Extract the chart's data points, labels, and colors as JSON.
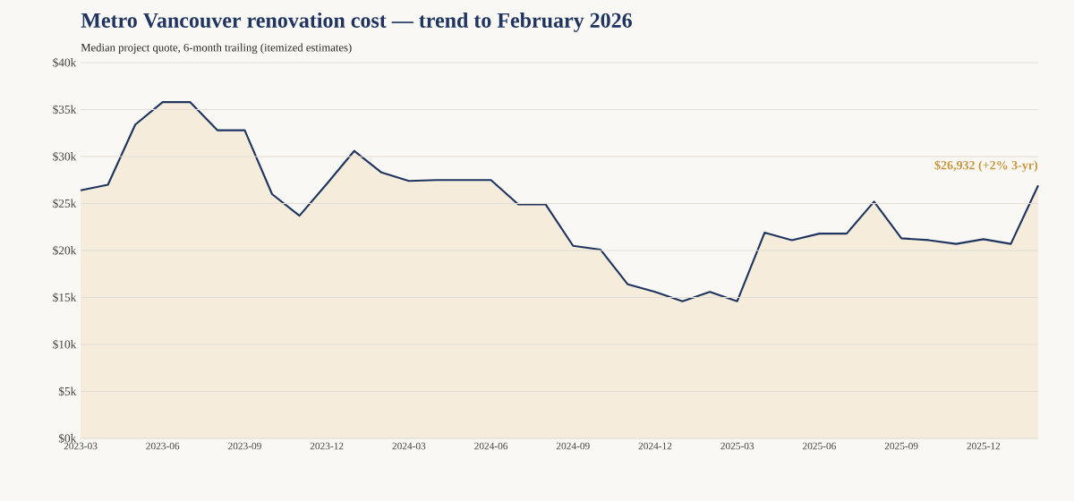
{
  "chart_data": {
    "type": "area",
    "title": "Metro Vancouver renovation cost — trend to February 2026",
    "subtitle": "Median project quote, 6-month trailing (itemized estimates)",
    "x": [
      "2023-03",
      "2023-04",
      "2023-05",
      "2023-06",
      "2023-07",
      "2023-08",
      "2023-09",
      "2023-10",
      "2023-11",
      "2023-12",
      "2024-01",
      "2024-02",
      "2024-03",
      "2024-04",
      "2024-05",
      "2024-06",
      "2024-07",
      "2024-08",
      "2024-09",
      "2024-10",
      "2024-11",
      "2024-12",
      "2025-01",
      "2025-02",
      "2025-03",
      "2025-04",
      "2025-05",
      "2025-06",
      "2025-07",
      "2025-08",
      "2025-09",
      "2025-10",
      "2025-11",
      "2025-12",
      "2026-01",
      "2026-02"
    ],
    "series": [
      {
        "color": "#1f3560",
        "values": [
          26400,
          27000,
          33400,
          35800,
          35800,
          32800,
          32800,
          26000,
          23700,
          27100,
          30600,
          28300,
          27400,
          27500,
          27500,
          27500,
          24900,
          24900,
          20500,
          20100,
          16400,
          15600,
          14600,
          15600,
          14600,
          21900,
          21100,
          21800,
          21800,
          25200,
          21300,
          21100,
          20700,
          21200,
          20700,
          26932
        ]
      }
    ],
    "xlim": [
      "2023-03",
      "2026-02"
    ],
    "xticks": [
      {
        "value": "2023-03",
        "label": "2023-03"
      },
      {
        "value": "2023-06",
        "label": "2023-06"
      },
      {
        "value": "2023-09",
        "label": "2023-09"
      },
      {
        "value": "2023-12",
        "label": "2023-12"
      },
      {
        "value": "2024-03",
        "label": "2024-03"
      },
      {
        "value": "2024-06",
        "label": "2024-06"
      },
      {
        "value": "2024-09",
        "label": "2024-09"
      },
      {
        "value": "2024-12",
        "label": "2024-12"
      },
      {
        "value": "2025-03",
        "label": "2025-03"
      },
      {
        "value": "2025-06",
        "label": "2025-06"
      },
      {
        "value": "2025-09",
        "label": "2025-09"
      },
      {
        "value": "2025-12",
        "label": "2025-12"
      }
    ],
    "ylim": [
      0,
      40000
    ],
    "yticks": [
      {
        "value": 0,
        "label": "$0k"
      },
      {
        "value": 5000,
        "label": "$5k"
      },
      {
        "value": 10000,
        "label": "$10k"
      },
      {
        "value": 15000,
        "label": "$15k"
      },
      {
        "value": 20000,
        "label": "$20k"
      },
      {
        "value": 25000,
        "label": "$25k"
      },
      {
        "value": 30000,
        "label": "$30k"
      },
      {
        "value": 35000,
        "label": "$35k"
      },
      {
        "value": 40000,
        "label": "$40k"
      }
    ],
    "annotations": [
      {
        "text": "$26,932 (+2% 3-yr)",
        "x": "2026-02",
        "y": 26932
      }
    ],
    "grid": "y",
    "legend": false,
    "marker": "none",
    "line_style": "solid"
  }
}
